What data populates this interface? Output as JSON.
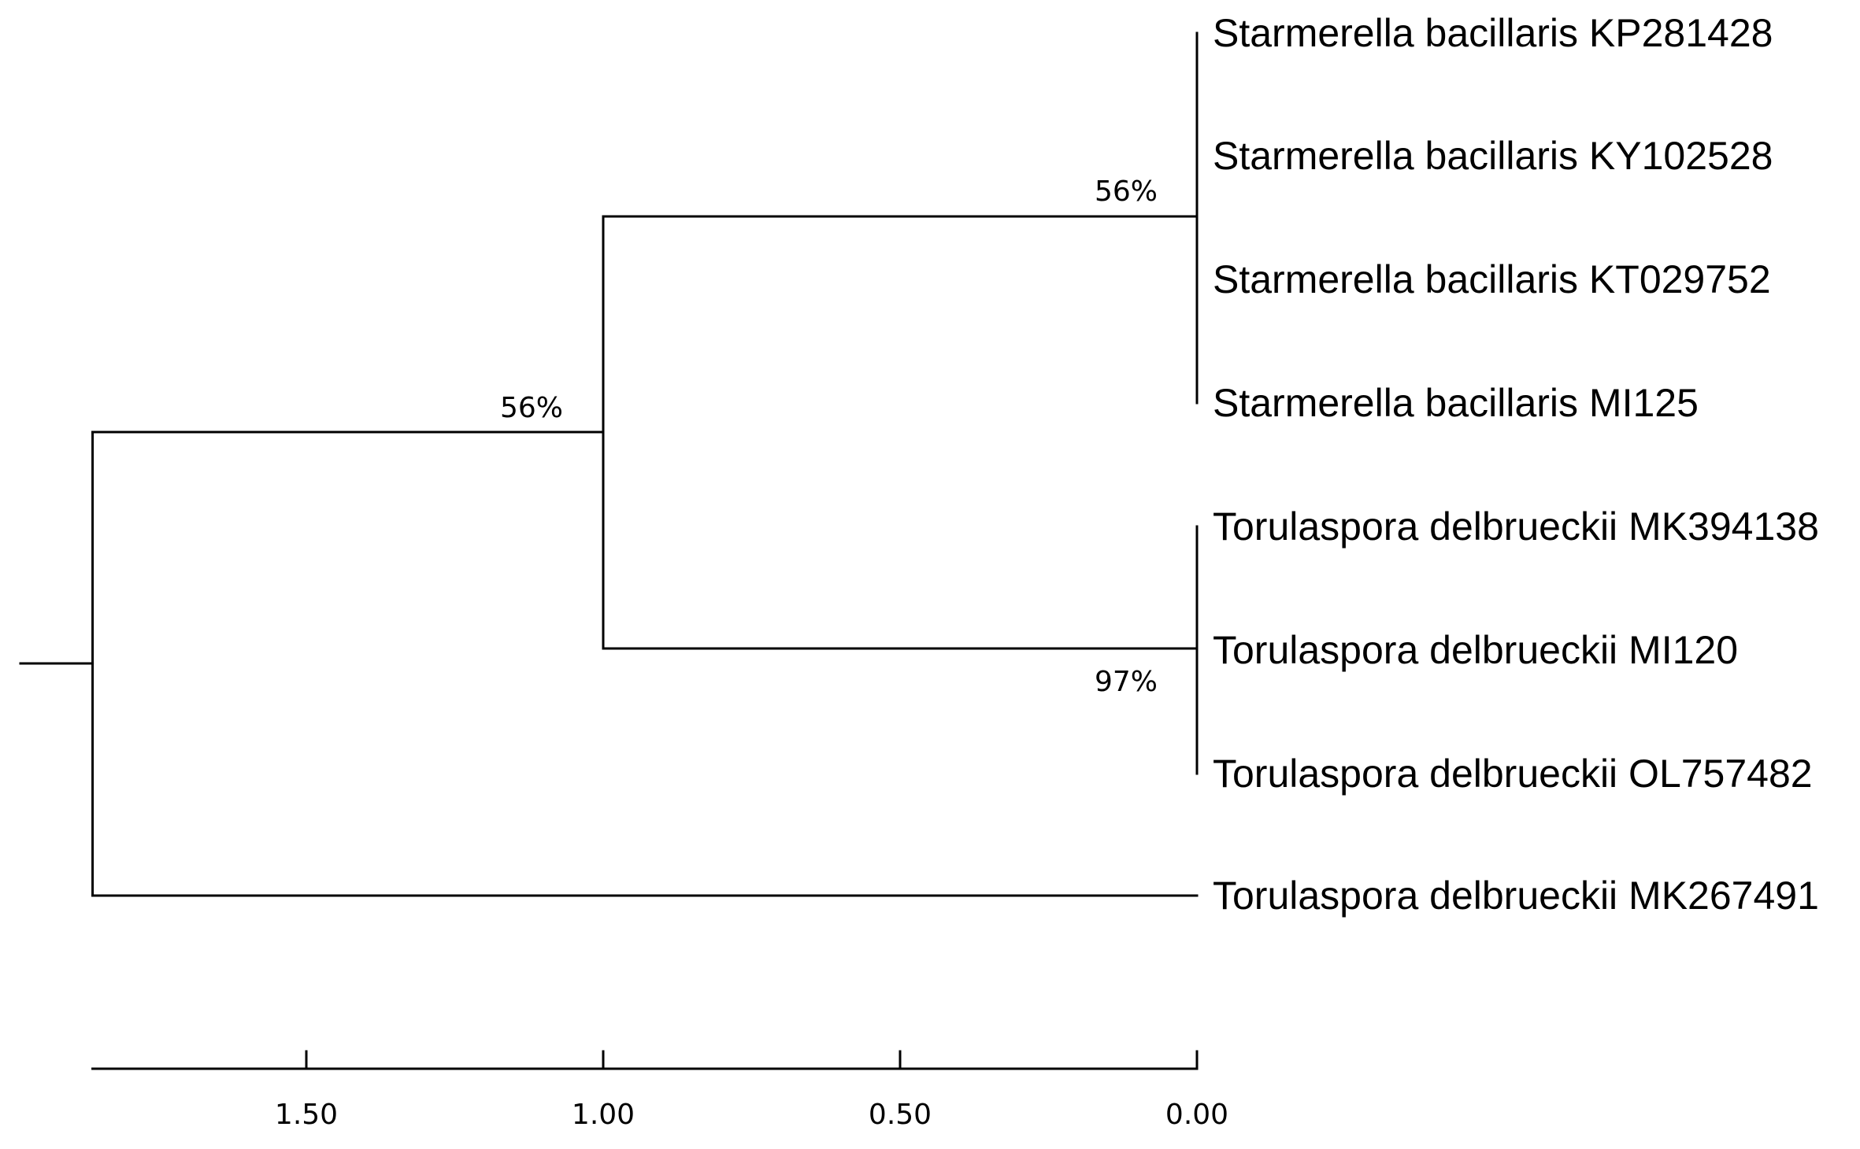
{
  "tree": {
    "taxa": [
      "Starmerella bacillaris KP281428",
      "Starmerella bacillaris KY102528",
      "Starmerella bacillaris KT029752",
      "Starmerella bacillaris MI125",
      "Torulaspora delbrueckii MK394138",
      "Torulaspora delbrueckii MI120",
      "Torulaspora delbrueckii OL757482",
      "Torulaspora delbrueckii MK267491"
    ],
    "nodes": {
      "root": {
        "height": 1.86,
        "support": ""
      },
      "inner": {
        "height": 1.0,
        "support": "56%"
      },
      "starmerella_clade": {
        "height": 0.0,
        "support": "56%"
      },
      "torulaspora_clade": {
        "height": 0.0,
        "support": "97%"
      }
    }
  },
  "scale_bar": {
    "ticks": [
      1.5,
      1.0,
      0.5,
      0.0
    ],
    "tick_labels": [
      "1.50",
      "1.00",
      "0.50",
      "0.00"
    ],
    "range": [
      1.86,
      0.0
    ]
  }
}
